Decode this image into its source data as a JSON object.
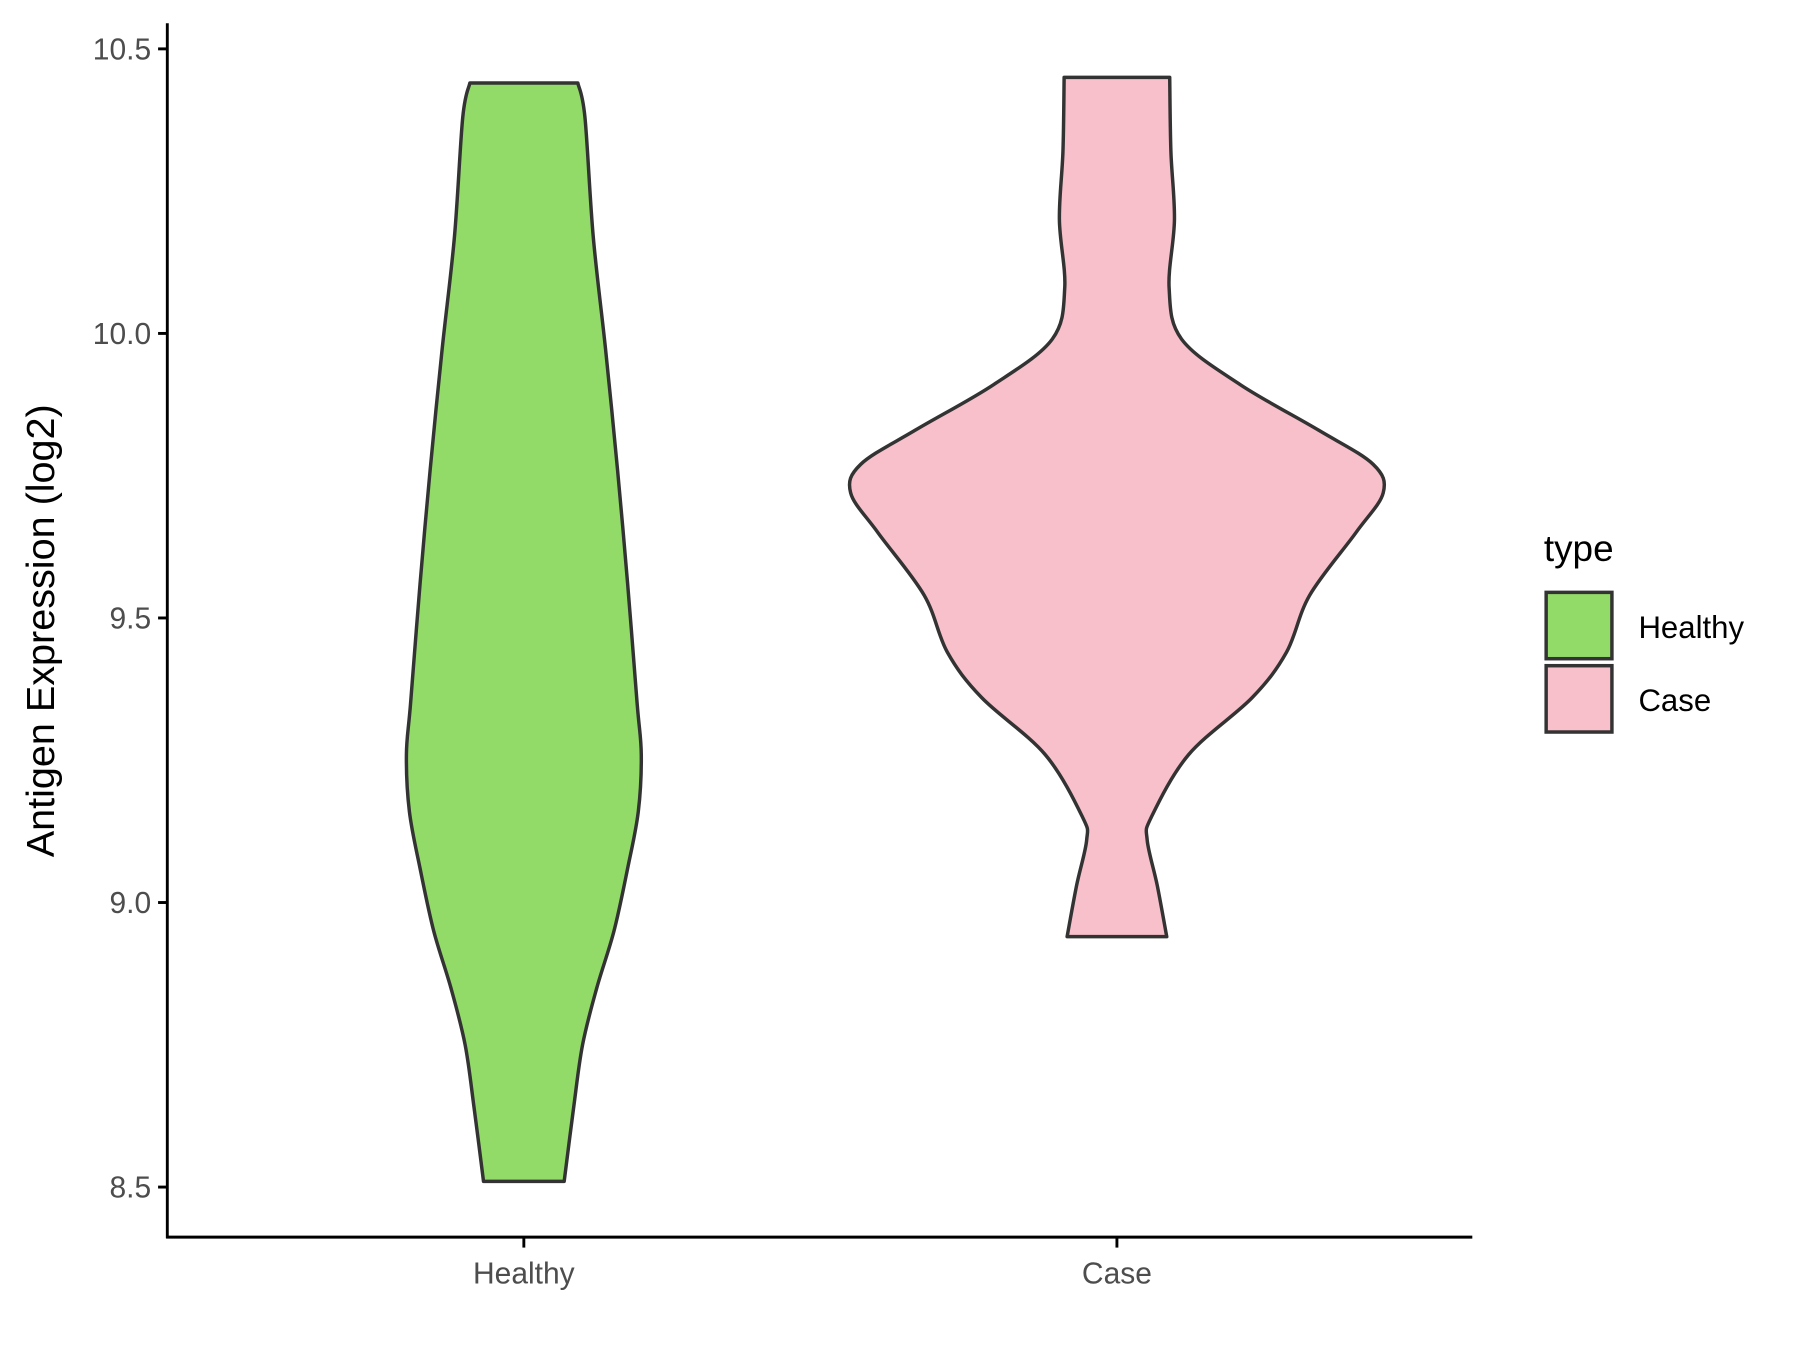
{
  "chart_data": {
    "type": "violin",
    "ylabel": "Antigen Expression (log2)",
    "xlabel": "",
    "ylim": [
      8.42,
      10.545
    ],
    "yticks": [
      "8.5",
      "9.0",
      "9.5",
      "10.0",
      "10.5"
    ],
    "ytick_values": [
      8.5,
      9.0,
      9.5,
      10.0,
      10.5
    ],
    "categories": [
      "Healthy",
      "Case"
    ],
    "grid": false,
    "legend": {
      "title": "type",
      "position": "right",
      "entries": [
        "Healthy",
        "Case"
      ]
    },
    "colors": {
      "Healthy": "#93DB69",
      "Case": "#F8C0CB",
      "outline": "#333333"
    },
    "series": [
      {
        "name": "Healthy",
        "min": 8.51,
        "max": 10.44,
        "profile": [
          [
            10.44,
            0.091
          ],
          [
            10.38,
            0.103
          ],
          [
            10.17,
            0.117
          ],
          [
            9.97,
            0.138
          ],
          [
            9.76,
            0.158
          ],
          [
            9.56,
            0.175
          ],
          [
            9.35,
            0.191
          ],
          [
            9.26,
            0.198
          ],
          [
            9.16,
            0.193
          ],
          [
            9.06,
            0.175
          ],
          [
            8.95,
            0.152
          ],
          [
            8.85,
            0.123
          ],
          [
            8.75,
            0.099
          ],
          [
            8.64,
            0.084
          ],
          [
            8.51,
            0.068
          ]
        ]
      },
      {
        "name": "Case",
        "min": 8.94,
        "max": 10.45,
        "profile": [
          [
            10.45,
            0.089
          ],
          [
            10.32,
            0.091
          ],
          [
            10.2,
            0.097
          ],
          [
            10.08,
            0.088
          ],
          [
            9.99,
            0.109
          ],
          [
            9.91,
            0.208
          ],
          [
            9.83,
            0.34
          ],
          [
            9.77,
            0.432
          ],
          [
            9.72,
            0.449
          ],
          [
            9.65,
            0.403
          ],
          [
            9.54,
            0.325
          ],
          [
            9.44,
            0.286
          ],
          [
            9.36,
            0.228
          ],
          [
            9.26,
            0.121
          ],
          [
            9.15,
            0.058
          ],
          [
            9.11,
            0.051
          ],
          [
            9.03,
            0.068
          ],
          [
            8.94,
            0.084
          ]
        ]
      }
    ]
  }
}
